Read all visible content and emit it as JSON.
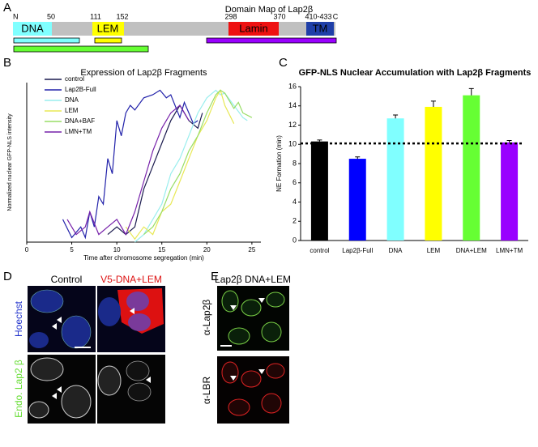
{
  "figure": {
    "panel_labels": [
      "A",
      "B",
      "C",
      "D",
      "E"
    ]
  },
  "domain_map": {
    "title": "Domain Map of Lap2β",
    "positions": [
      "N",
      "50",
      "111",
      "152",
      "298",
      "370",
      "410-433",
      "C"
    ],
    "domains": [
      "DNA",
      "LEM",
      "Lamin",
      "TM"
    ]
  },
  "chart_data": [
    {
      "type": "line",
      "title": "Expression of Lap2β Fragments",
      "x_label": "Time after chromosome segregation (min)",
      "y_label": "Normalized nuclear GFP-NLS intensity",
      "xlim": [
        0,
        26
      ],
      "xticks": [
        0,
        5,
        10,
        15,
        20,
        25
      ],
      "ylim": [
        0,
        1.05
      ],
      "series": [
        {
          "name": "control",
          "color": "#1a1a4e",
          "x": [
            9,
            10,
            11,
            12,
            13,
            14,
            15,
            16,
            17,
            18,
            19,
            19.5
          ],
          "values": [
            0.05,
            0.1,
            0.05,
            0.1,
            0.35,
            0.5,
            0.65,
            0.8,
            0.9,
            0.8,
            0.75,
            0.85
          ]
        },
        {
          "name": "Lap2B-Full",
          "color": "#2222aa",
          "x": [
            4,
            5,
            6,
            6.5,
            7,
            7.5,
            8,
            8.5,
            9,
            9.5,
            10,
            10.5,
            11,
            11.5,
            12,
            13,
            14,
            14.8,
            15.5,
            16,
            17,
            17.5,
            18,
            18.5,
            19
          ],
          "values": [
            0.15,
            0.03,
            0.1,
            0.03,
            0.2,
            0.1,
            0.3,
            0.25,
            0.55,
            0.45,
            0.8,
            0.7,
            0.85,
            0.9,
            0.87,
            0.95,
            0.97,
            1.0,
            0.95,
            0.97,
            0.82,
            0.92,
            0.85,
            0.78,
            0.8
          ]
        },
        {
          "name": "DNA",
          "color": "#99eeee",
          "x": [
            12,
            13,
            14,
            15,
            16,
            17,
            18,
            19,
            20,
            21,
            21.5,
            22,
            23,
            24,
            24.5
          ],
          "values": [
            0.0,
            0.05,
            0.15,
            0.25,
            0.45,
            0.55,
            0.7,
            0.85,
            0.95,
            1.0,
            0.97,
            0.98,
            0.9,
            0.82,
            0.8
          ]
        },
        {
          "name": "LEM",
          "color": "#e8e855",
          "x": [
            11,
            12,
            13,
            14,
            15,
            16,
            17,
            18,
            19,
            20,
            21,
            21.5,
            22,
            23
          ],
          "values": [
            0.1,
            0.02,
            0.1,
            0.05,
            0.2,
            0.25,
            0.4,
            0.55,
            0.7,
            0.8,
            0.95,
            1.0,
            0.9,
            0.78
          ]
        },
        {
          "name": "DNA+BAF",
          "color": "#99dd66",
          "x": [
            13,
            14,
            15,
            16,
            17,
            18,
            19,
            20,
            21,
            21.5,
            22,
            23,
            23.5,
            24,
            25
          ],
          "values": [
            0.05,
            0.1,
            0.2,
            0.35,
            0.45,
            0.6,
            0.7,
            0.85,
            0.97,
            1.0,
            0.98,
            0.88,
            0.92,
            0.85,
            0.82
          ]
        },
        {
          "name": "LMN+TM",
          "color": "#7722aa",
          "x": [
            4.5,
            5.5,
            6.5,
            7,
            8,
            9,
            10,
            11,
            12,
            13,
            14,
            15,
            16,
            17,
            18
          ],
          "values": [
            0.15,
            0.05,
            0.1,
            0.2,
            0.05,
            0.1,
            0.15,
            0.05,
            0.2,
            0.4,
            0.6,
            0.75,
            0.85,
            0.9,
            0.8
          ]
        }
      ]
    },
    {
      "type": "bar",
      "title": "GFP-NLS Nuclear Accumulation with Lap2β Fragments",
      "y_label": "NE Formation (min)",
      "categories": [
        "control",
        "Lap2β-Full",
        "DNA",
        "LEM",
        "DNA+LEM",
        "LMN+TM"
      ],
      "values": [
        10.3,
        8.5,
        12.7,
        13.9,
        15.1,
        10.2
      ],
      "errors": [
        0.15,
        0.2,
        0.35,
        0.6,
        0.7,
        0.2
      ],
      "colors": [
        "#000000",
        "#0000ff",
        "#80ffff",
        "#ffff00",
        "#66ff33",
        "#9900ff"
      ],
      "ylim": [
        0,
        16
      ],
      "yticks": [
        0,
        2,
        4,
        6,
        8,
        10,
        12,
        14,
        16
      ],
      "reference_line": 10.1
    }
  ],
  "micrographs": {
    "d_columns": [
      "Control",
      "V5-DNA+LEM"
    ],
    "d_rows": [
      "Hoechst",
      "Endo. Lap2 β"
    ],
    "e_title": "Lap2β DNA+LEM",
    "e_rows": [
      "α-Lap2β",
      "α-LBR"
    ]
  }
}
